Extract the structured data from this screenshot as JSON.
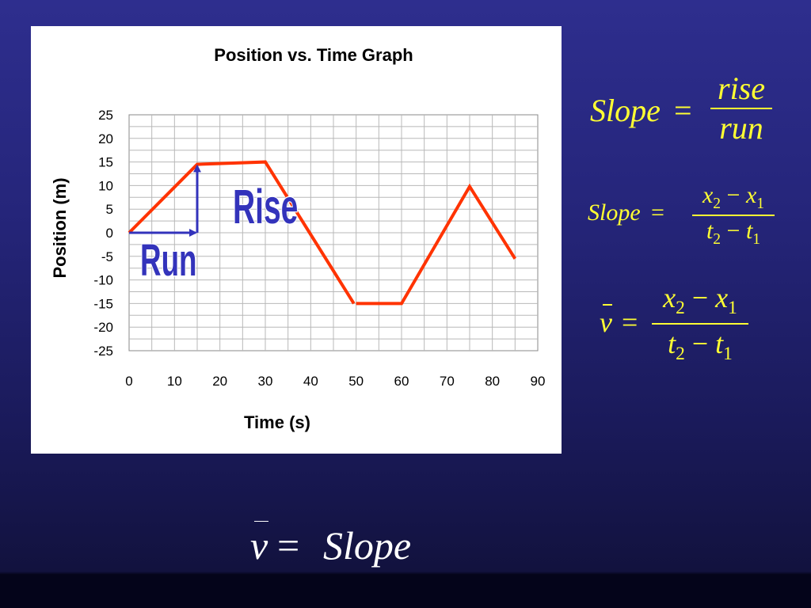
{
  "chart_data": {
    "type": "line",
    "title": "Position vs. Time Graph",
    "xlabel": "Time (s)",
    "ylabel": "Position (m)",
    "xlim": [
      0,
      90
    ],
    "ylim": [
      -25,
      25
    ],
    "x_ticks": [
      "0",
      "10",
      "20",
      "30",
      "40",
      "50",
      "60",
      "70",
      "80",
      "90"
    ],
    "y_ticks": [
      "25",
      "20",
      "15",
      "10",
      "5",
      "0",
      "-5",
      "-10",
      "-15",
      "-20",
      "-25"
    ],
    "grid": true,
    "series_color": "#ff3300",
    "segments": [
      [
        [
          0,
          0
        ],
        [
          15,
          14.5
        ],
        [
          30,
          15
        ],
        [
          49.5,
          -15
        ]
      ],
      [
        [
          50,
          -15
        ],
        [
          60,
          -15
        ],
        [
          75,
          9.8
        ],
        [
          85,
          -5.5
        ]
      ]
    ],
    "annotations": {
      "rise_label": "Rise",
      "run_label": "Run",
      "arrow_color": "#3333bb",
      "run_arrow": {
        "from": [
          0,
          0
        ],
        "to": [
          15,
          0
        ]
      },
      "rise_arrow": {
        "from": [
          15,
          0
        ],
        "to": [
          15,
          14.5
        ]
      }
    }
  },
  "equations": {
    "slope_lhs": "Slope",
    "equals": "=",
    "rise": "rise",
    "run": "run",
    "minus": "−",
    "x": "x",
    "t": "t",
    "sub2": "2",
    "sub1": "1",
    "v": "v",
    "final_rhs": "Slope"
  },
  "colors": {
    "equation_text": "#ffff33",
    "background_top": "#2e2e8e",
    "background_bottom": "#04041a"
  }
}
